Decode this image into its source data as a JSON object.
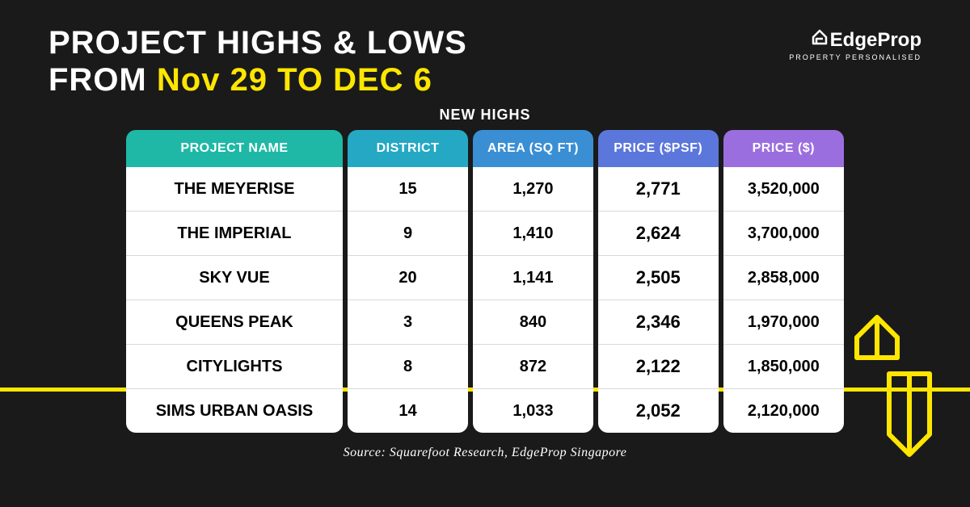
{
  "title": {
    "line1_prefix": "PROJECT HIGHS & LOWS",
    "line2_prefix": "FROM ",
    "line2_highlight": "Nov 29 TO DEC 6"
  },
  "logo": {
    "brand_e": "E",
    "brand_rest": "dgeProp",
    "tagline": "PROPERTY PERSONALISED"
  },
  "table": {
    "caption": "NEW HIGHS",
    "columns": [
      {
        "label": "PROJECT NAME",
        "bg": "#1fb8a6"
      },
      {
        "label": "DISTRICT",
        "bg": "#25a8c4"
      },
      {
        "label": "AREA (SQ FT)",
        "bg": "#3a8fd4"
      },
      {
        "label": "PRICE ($PSF)",
        "bg": "#5c77db"
      },
      {
        "label": "PRICE ($)",
        "bg": "#9b6ee0"
      }
    ],
    "rows": [
      {
        "name": "THE MEYERISE",
        "district": "15",
        "area": "1,270",
        "psf": "2,771",
        "price": "3,520,000"
      },
      {
        "name": "THE IMPERIAL",
        "district": "9",
        "area": "1,410",
        "psf": "2,624",
        "price": "3,700,000"
      },
      {
        "name": "SKY VUE",
        "district": "20",
        "area": "1,141",
        "psf": "2,505",
        "price": "2,858,000"
      },
      {
        "name": "QUEENS PEAK",
        "district": "3",
        "area": "840",
        "psf": "2,346",
        "price": "1,970,000"
      },
      {
        "name": "CITYLIGHTS",
        "district": "8",
        "area": "872",
        "psf": "2,122",
        "price": "1,850,000"
      },
      {
        "name": "SIMS URBAN OASIS",
        "district": "14",
        "area": "1,033",
        "psf": "2,052",
        "price": "2,120,000"
      }
    ]
  },
  "source": "Source: Squarefoot Research, EdgeProp Singapore",
  "colors": {
    "background": "#1a1a1a",
    "accent": "#ffe600",
    "text_light": "#ffffff",
    "cell_bg": "#ffffff",
    "cell_text": "#000000"
  }
}
